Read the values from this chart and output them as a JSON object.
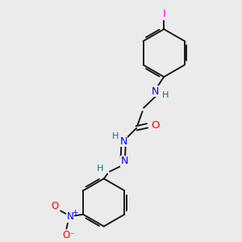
{
  "background_color": "#ebebeb",
  "bond_color": "#1a1a1a",
  "atom_colors": {
    "N": "#0000ff",
    "O": "#ff0000",
    "I": "#ee00ee",
    "H": "#008080",
    "C": "#1a1a1a"
  },
  "figsize": [
    3.0,
    3.0
  ],
  "dpi": 100
}
